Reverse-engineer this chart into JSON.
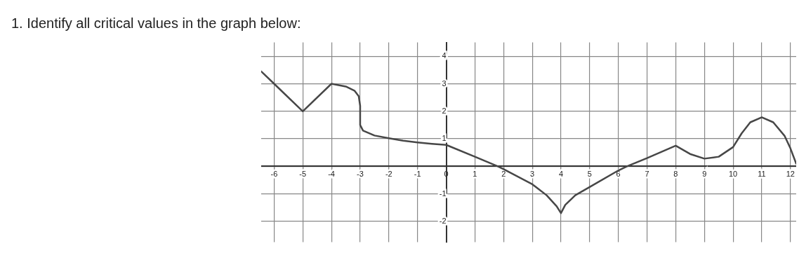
{
  "chart_data": {
    "type": "line",
    "title": "1.  Identify all critical values in the graph below:",
    "series": [
      {
        "color": "#474747",
        "x": [
          -6.45,
          -6,
          -5,
          -4,
          -3.5,
          -3.2,
          -3.05,
          -3,
          -3,
          -2.9,
          -2.5,
          -2,
          -1.5,
          -1,
          -0.5,
          0,
          1,
          1.8,
          2,
          3,
          3.5,
          3.85,
          4,
          4.15,
          4.5,
          5,
          6,
          6.3,
          7,
          8,
          8.5,
          9,
          9.5,
          10,
          10.3,
          10.6,
          11,
          11.4,
          11.8,
          12,
          12.2
        ],
        "values": [
          3.45,
          3,
          2,
          3,
          2.9,
          2.75,
          2.55,
          2.2,
          1.5,
          1.3,
          1.12,
          1.02,
          0.93,
          0.87,
          0.82,
          0.78,
          0.35,
          0,
          -0.1,
          -0.65,
          -1.05,
          -1.45,
          -1.7,
          -1.4,
          -1.05,
          -0.75,
          -0.15,
          0,
          0.3,
          0.75,
          0.45,
          0.28,
          0.35,
          0.7,
          1.2,
          1.6,
          1.78,
          1.6,
          1.1,
          0.65,
          0.1
        ]
      }
    ],
    "xlim": [
      -6.45,
      12.2
    ],
    "ylim": [
      -2.75,
      4.5
    ],
    "xticks": [
      -6,
      -5,
      -4,
      -3,
      -2,
      -1,
      0,
      1,
      2,
      3,
      4,
      5,
      6,
      7,
      8,
      9,
      10,
      11,
      12
    ],
    "yticks": [
      -2,
      -1,
      {
        "value": 0,
        "label": null
      },
      1,
      2,
      3,
      4
    ],
    "grid": true,
    "legend": false,
    "marker": "none",
    "line_style": "solid"
  }
}
